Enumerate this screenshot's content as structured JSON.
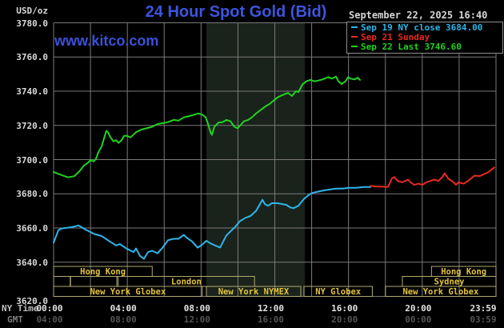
{
  "header": {
    "unit_label": "USD/oz",
    "title": "24 Hour Spot Gold (Bid)",
    "datetime": "September 22, 2025 16:40",
    "watermark": "www.kitco.com"
  },
  "legend": {
    "items": [
      {
        "label": "Sep 19 NY close 3684.00",
        "color": "#2eb6ea"
      },
      {
        "label": "Sep 21 Sunday",
        "color": "#ea2a22"
      },
      {
        "label": "Sep 22 Last 3746.60",
        "color": "#20d320"
      }
    ]
  },
  "axes": {
    "ny_time_label": "NY Time",
    "gmt_label": "GMT"
  },
  "chart_data": {
    "type": "line",
    "title": "24 Hour Spot Gold (Bid)",
    "ylabel": "USD/oz",
    "xlabel": "NY Time / GMT",
    "ylim": [
      3620,
      3780
    ],
    "y_ticks": [
      3780,
      3760,
      3740,
      3720,
      3700,
      3680,
      3660,
      3640,
      3620
    ],
    "x_hours": [
      0,
      24
    ],
    "grid_step_hours": 2,
    "grid": true,
    "colors": {
      "background": "#000000",
      "gridline": "#7a7a7a",
      "session_box_border": "#b2aa6e",
      "session_label": "#e2c33c",
      "nymex_shade": "#1a231b"
    },
    "x_ticks": [
      {
        "hour": 0,
        "ny": "00:00",
        "gmt": "04:00"
      },
      {
        "hour": 4,
        "ny": "04:00",
        "gmt": "08:00"
      },
      {
        "hour": 8,
        "ny": "08:00",
        "gmt": "12:00"
      },
      {
        "hour": 12,
        "ny": "12:00",
        "gmt": "16:00"
      },
      {
        "hour": 16,
        "ny": "16:00",
        "gmt": "20:00"
      },
      {
        "hour": 20,
        "ny": "20:00",
        "gmt": "00:00"
      },
      {
        "hour": 23.983,
        "ny": "23:59",
        "gmt": "03:59"
      }
    ],
    "nymex_session_shade": {
      "start_hour": 8.29,
      "end_hour": 13.63
    },
    "sessions": [
      {
        "row": 1,
        "label": "Hong Kong",
        "start": 0,
        "end": 5.35
      },
      {
        "row": 1,
        "label": "Hong Kong",
        "start": 20.5,
        "end": 24
      },
      {
        "row": 2,
        "label": "",
        "start": 0,
        "end": 0.9
      },
      {
        "row": 2,
        "label": "",
        "start": 0.92,
        "end": 3.43
      },
      {
        "row": 2,
        "label": "London",
        "start": 3.5,
        "end": 10.9
      },
      {
        "row": 2,
        "label": "Sydney",
        "start": 18.92,
        "end": 24
      },
      {
        "row": 3,
        "label": "New York Globex",
        "start": 0,
        "end": 8.06
      },
      {
        "row": 3,
        "label": "New York NYMEX",
        "start": 8.29,
        "end": 13.41
      },
      {
        "row": 3,
        "label": "NY Globex",
        "start": 13.58,
        "end": 17.29
      },
      {
        "row": 3,
        "label": "New York Globex",
        "start": 18.0,
        "end": 24
      }
    ],
    "series": [
      {
        "name": "sep19",
        "label": "Sep 19 NY close",
        "close": 3684.0,
        "color": "#2eb6ea",
        "points": [
          [
            0,
            3651.4
          ],
          [
            0.26,
            3658.7
          ],
          [
            0.43,
            3659.7
          ],
          [
            1.0,
            3660.5
          ],
          [
            1.35,
            3661.5
          ],
          [
            1.56,
            3660.2
          ],
          [
            1.74,
            3659.0
          ],
          [
            2.21,
            3656.5
          ],
          [
            2.6,
            3655.3
          ],
          [
            3.04,
            3652.2
          ],
          [
            3.39,
            3649.8
          ],
          [
            3.6,
            3650.6
          ],
          [
            3.91,
            3648.3
          ],
          [
            4.04,
            3647.5
          ],
          [
            4.34,
            3645.9
          ],
          [
            4.47,
            3648.0
          ],
          [
            4.69,
            3643.6
          ],
          [
            4.9,
            3642.0
          ],
          [
            5.12,
            3645.9
          ],
          [
            5.34,
            3646.7
          ],
          [
            5.64,
            3645.2
          ],
          [
            5.9,
            3648.3
          ],
          [
            6.21,
            3652.9
          ],
          [
            6.51,
            3653.7
          ],
          [
            6.77,
            3653.7
          ],
          [
            7.07,
            3656.0
          ],
          [
            7.2,
            3654.5
          ],
          [
            7.51,
            3652.2
          ],
          [
            7.81,
            3648.5
          ],
          [
            8.03,
            3650.0
          ],
          [
            8.29,
            3652.5
          ],
          [
            8.51,
            3651.0
          ],
          [
            8.72,
            3650.0
          ],
          [
            9.03,
            3648.6
          ],
          [
            9.37,
            3655.6
          ],
          [
            9.59,
            3658.0
          ],
          [
            9.81,
            3660.2
          ],
          [
            10.11,
            3664.0
          ],
          [
            10.42,
            3666.0
          ],
          [
            10.68,
            3667.0
          ],
          [
            10.98,
            3670.0
          ],
          [
            11.33,
            3676.5
          ],
          [
            11.46,
            3674.0
          ],
          [
            11.63,
            3673.0
          ],
          [
            11.85,
            3674.5
          ],
          [
            12.15,
            3674.5
          ],
          [
            12.41,
            3674.0
          ],
          [
            12.63,
            3673.5
          ],
          [
            12.85,
            3672.0
          ],
          [
            13.02,
            3671.6
          ],
          [
            13.28,
            3673.0
          ],
          [
            13.58,
            3677.0
          ],
          [
            13.8,
            3679.0
          ],
          [
            14.02,
            3680.5
          ],
          [
            14.23,
            3681.0
          ],
          [
            14.45,
            3681.5
          ],
          [
            14.67,
            3682.0
          ],
          [
            14.97,
            3682.5
          ],
          [
            15.32,
            3683.0
          ],
          [
            15.67,
            3683.0
          ],
          [
            16.01,
            3683.5
          ],
          [
            16.4,
            3683.5
          ],
          [
            16.84,
            3684.0
          ],
          [
            17.19,
            3684.0
          ]
        ]
      },
      {
        "name": "sep21",
        "label": "Sep 21 Sunday",
        "color": "#ea2a22",
        "points": [
          [
            17.19,
            3684.6
          ],
          [
            17.49,
            3684.3
          ],
          [
            17.84,
            3684.2
          ],
          [
            18.05,
            3684.0
          ],
          [
            18.14,
            3684.0
          ],
          [
            18.36,
            3689.0
          ],
          [
            18.49,
            3689.8
          ],
          [
            18.66,
            3687.5
          ],
          [
            18.92,
            3686.7
          ],
          [
            19.23,
            3688.3
          ],
          [
            19.36,
            3686.7
          ],
          [
            19.57,
            3685.2
          ],
          [
            19.79,
            3685.9
          ],
          [
            20.01,
            3685.2
          ],
          [
            20.22,
            3686.7
          ],
          [
            20.44,
            3687.5
          ],
          [
            20.66,
            3688.3
          ],
          [
            20.87,
            3687.5
          ],
          [
            21.09,
            3689.8
          ],
          [
            21.22,
            3692.0
          ],
          [
            21.4,
            3689.0
          ],
          [
            21.7,
            3686.7
          ],
          [
            21.83,
            3685.2
          ],
          [
            21.96,
            3686.7
          ],
          [
            22.26,
            3685.9
          ],
          [
            22.57,
            3688.3
          ],
          [
            22.83,
            3690.6
          ],
          [
            23.13,
            3690.4
          ],
          [
            23.35,
            3691.5
          ],
          [
            23.56,
            3692.5
          ],
          [
            23.74,
            3694.0
          ],
          [
            23.91,
            3695.4
          ]
        ]
      },
      {
        "name": "sep22",
        "label": "Sep 22 Last",
        "last": 3746.6,
        "color": "#20d320",
        "points": [
          [
            0,
            3692.7
          ],
          [
            0.3,
            3691.5
          ],
          [
            0.78,
            3689.6
          ],
          [
            1.13,
            3690.3
          ],
          [
            1.43,
            3693.5
          ],
          [
            1.65,
            3696.6
          ],
          [
            1.87,
            3698.2
          ],
          [
            2.0,
            3699.7
          ],
          [
            2.17,
            3698.9
          ],
          [
            2.3,
            3700.5
          ],
          [
            2.43,
            3704.4
          ],
          [
            2.6,
            3707.5
          ],
          [
            2.73,
            3712.2
          ],
          [
            2.86,
            3716.8
          ],
          [
            2.95,
            3716.0
          ],
          [
            3.08,
            3713.0
          ],
          [
            3.25,
            3710.6
          ],
          [
            3.39,
            3711.4
          ],
          [
            3.52,
            3709.8
          ],
          [
            3.69,
            3711.4
          ],
          [
            3.82,
            3713.8
          ],
          [
            3.95,
            3714.0
          ],
          [
            4.17,
            3713.0
          ],
          [
            4.47,
            3716.0
          ],
          [
            4.77,
            3717.6
          ],
          [
            5.03,
            3718.3
          ],
          [
            5.34,
            3719.2
          ],
          [
            5.64,
            3720.8
          ],
          [
            5.9,
            3721.3
          ],
          [
            6.21,
            3721.9
          ],
          [
            6.51,
            3723.2
          ],
          [
            6.77,
            3722.8
          ],
          [
            7.07,
            3724.7
          ],
          [
            7.38,
            3725.5
          ],
          [
            7.64,
            3726.3
          ],
          [
            7.85,
            3727.0
          ],
          [
            8.07,
            3726.3
          ],
          [
            8.25,
            3724.7
          ],
          [
            8.38,
            3720.8
          ],
          [
            8.51,
            3716.0
          ],
          [
            8.59,
            3714.5
          ],
          [
            8.72,
            3719.2
          ],
          [
            8.94,
            3721.6
          ],
          [
            9.16,
            3721.9
          ],
          [
            9.37,
            3723.2
          ],
          [
            9.59,
            3722.4
          ],
          [
            9.81,
            3719.2
          ],
          [
            9.98,
            3718.3
          ],
          [
            10.11,
            3719.9
          ],
          [
            10.33,
            3722.4
          ],
          [
            10.55,
            3723.2
          ],
          [
            10.76,
            3724.7
          ],
          [
            10.98,
            3727.0
          ],
          [
            11.28,
            3729.4
          ],
          [
            11.54,
            3731.5
          ],
          [
            11.72,
            3732.5
          ],
          [
            11.93,
            3734.5
          ],
          [
            12.15,
            3736.4
          ],
          [
            12.37,
            3737.5
          ],
          [
            12.59,
            3738.5
          ],
          [
            12.72,
            3739.0
          ],
          [
            12.93,
            3737.2
          ],
          [
            13.15,
            3740.0
          ],
          [
            13.28,
            3739.5
          ],
          [
            13.5,
            3744.0
          ],
          [
            13.71,
            3745.8
          ],
          [
            13.93,
            3746.6
          ],
          [
            14.15,
            3745.8
          ],
          [
            14.36,
            3746.2
          ],
          [
            14.58,
            3746.9
          ],
          [
            14.89,
            3748.2
          ],
          [
            15.1,
            3747.4
          ],
          [
            15.32,
            3748.5
          ],
          [
            15.45,
            3745.8
          ],
          [
            15.62,
            3744.2
          ],
          [
            15.84,
            3745.8
          ],
          [
            15.97,
            3748.2
          ],
          [
            16.1,
            3747.4
          ],
          [
            16.32,
            3746.9
          ],
          [
            16.49,
            3747.9
          ],
          [
            16.62,
            3746.6
          ]
        ]
      }
    ]
  }
}
